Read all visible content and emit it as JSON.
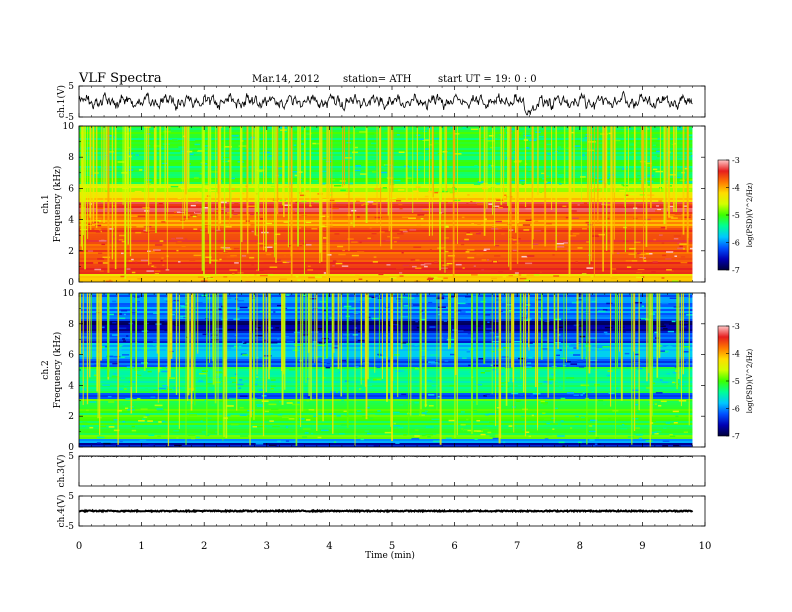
{
  "header": {
    "title": "VLF  Spectra",
    "date": "Mar.14, 2012",
    "station": "station= ATH",
    "start_ut": "start  UT =    19: 0  : 0"
  },
  "chart_data": [
    {
      "type": "line",
      "panel": "ch1-waveform",
      "ylabel": "ch.1(V)",
      "ylim": [
        -5,
        5
      ],
      "y_ticks": [
        "5",
        "-5"
      ],
      "x_range_min": [
        0,
        9.8
      ],
      "description_values": "noisy waveform between about -3 and 3 V"
    },
    {
      "type": "heatmap",
      "panel": "ch1-spectrogram",
      "ylabel": "Frequency  (kHz)",
      "channel_label": "ch.1",
      "ylim": [
        0,
        10
      ],
      "y_ticks": [
        "0",
        "2",
        "4",
        "6",
        "8",
        "10"
      ],
      "x_range_min": [
        0,
        9.8
      ],
      "colorbar": {
        "label": "log(PSD)(V^2/Hz)",
        "range": [
          -7,
          -3
        ],
        "ticks": [
          "-3",
          "-4",
          "-5",
          "-6",
          "-7"
        ]
      }
    },
    {
      "type": "heatmap",
      "panel": "ch2-spectrogram",
      "ylabel": "Frequency  (kHz)",
      "channel_label": "ch.2",
      "ylim": [
        0,
        10
      ],
      "y_ticks": [
        "0",
        "2",
        "4",
        "6",
        "8",
        "10"
      ],
      "x_range_min": [
        0,
        9.8
      ],
      "colorbar": {
        "label": "log(PSD)(V^2/Hz)",
        "range": [
          -7,
          -3
        ],
        "ticks": [
          "-3",
          "-4",
          "-5",
          "-6",
          "-7"
        ]
      }
    },
    {
      "type": "line",
      "panel": "ch3-waveform",
      "ylabel": "ch.3(V)",
      "ylim": [
        -5,
        5
      ],
      "y_ticks": [
        "5"
      ],
      "value": 5
    },
    {
      "type": "line",
      "panel": "ch4-waveform",
      "ylabel": "ch.4(V)",
      "ylim": [
        -5,
        5
      ],
      "y_ticks": [
        "5",
        "-5"
      ],
      "value": 0
    }
  ],
  "x_axis": {
    "label": "Time  (min)",
    "range": [
      0,
      10
    ],
    "ticks": [
      "0",
      "1",
      "2",
      "3",
      "4",
      "5",
      "6",
      "7",
      "8",
      "9",
      "10"
    ]
  },
  "colors": {
    "colormap": [
      "#00003a",
      "#0000b4",
      "#0050ff",
      "#00c8ff",
      "#00ff96",
      "#3cff00",
      "#d2ff00",
      "#ffdc00",
      "#ff7800",
      "#e61e1e",
      "#ffc8c8"
    ]
  }
}
